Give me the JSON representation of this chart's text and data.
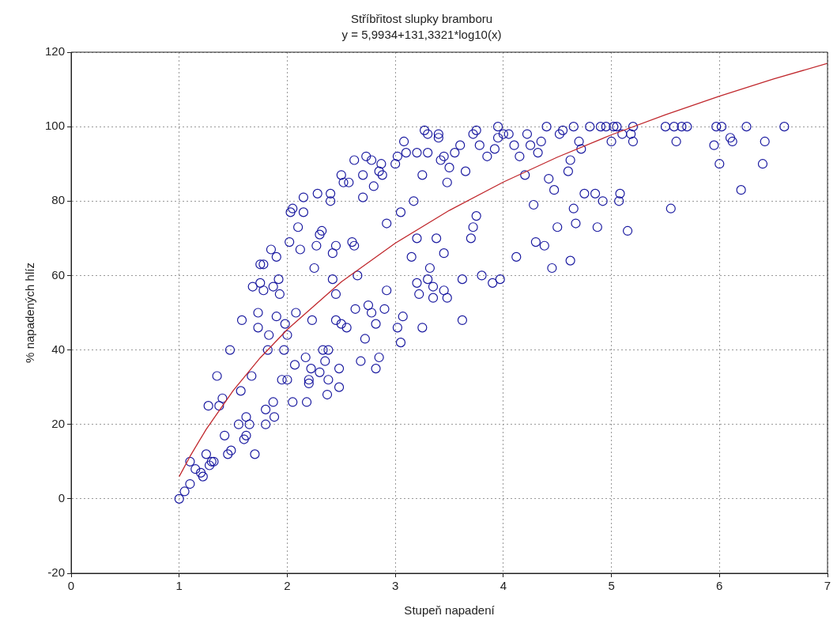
{
  "chart_data": {
    "type": "scatter",
    "title": "Stříbřitost slupky bramboru",
    "subtitle": "y = 5,9934+131,3321*log10(x)",
    "xlabel": "Stupeň napadení",
    "ylabel": "% napadených hlíz",
    "xlim": [
      0,
      7
    ],
    "xticks": [
      0,
      1,
      2,
      3,
      4,
      5,
      6,
      7
    ],
    "ylim": [
      -20,
      120
    ],
    "yticks": [
      -20,
      0,
      20,
      40,
      60,
      80,
      100,
      120
    ],
    "grid": true,
    "legend": false,
    "series": [
      {
        "color": "#1a1aa0",
        "marker": "circle",
        "x": [
          1.0,
          1.05,
          1.1,
          1.1,
          1.15,
          1.2,
          1.22,
          1.25,
          1.28,
          1.3,
          1.32,
          1.27,
          1.35,
          1.37,
          1.4,
          1.45,
          1.42,
          1.48,
          1.47,
          1.55,
          1.57,
          1.58,
          1.6,
          1.62,
          1.62,
          1.65,
          1.67,
          1.68,
          1.7,
          1.73,
          1.73,
          1.75,
          1.75,
          1.78,
          1.78,
          1.8,
          1.8,
          1.82,
          1.83,
          1.85,
          1.87,
          1.87,
          1.88,
          1.9,
          1.9,
          1.92,
          1.93,
          1.95,
          1.97,
          1.98,
          2.0,
          2.0,
          2.02,
          2.03,
          2.05,
          2.05,
          2.07,
          2.08,
          2.1,
          2.12,
          2.15,
          2.15,
          2.17,
          2.18,
          2.2,
          2.2,
          2.22,
          2.23,
          2.25,
          2.27,
          2.28,
          2.3,
          2.3,
          2.32,
          2.33,
          2.35,
          2.37,
          2.38,
          2.38,
          2.4,
          2.4,
          2.42,
          2.42,
          2.45,
          2.45,
          2.45,
          2.48,
          2.48,
          2.5,
          2.5,
          2.52,
          2.55,
          2.57,
          2.6,
          2.62,
          2.62,
          2.63,
          2.65,
          2.68,
          2.7,
          2.7,
          2.72,
          2.73,
          2.75,
          2.78,
          2.78,
          2.8,
          2.82,
          2.82,
          2.85,
          2.85,
          2.87,
          2.88,
          2.9,
          2.92,
          2.92,
          3.0,
          3.02,
          3.02,
          3.05,
          3.05,
          3.07,
          3.08,
          3.1,
          3.15,
          3.17,
          3.2,
          3.2,
          3.2,
          3.22,
          3.25,
          3.25,
          3.27,
          3.3,
          3.3,
          3.3,
          3.32,
          3.35,
          3.35,
          3.38,
          3.4,
          3.4,
          3.42,
          3.45,
          3.45,
          3.45,
          3.48,
          3.48,
          3.5,
          3.55,
          3.6,
          3.62,
          3.62,
          3.65,
          3.7,
          3.72,
          3.72,
          3.75,
          3.75,
          3.78,
          3.8,
          3.85,
          3.9,
          3.92,
          3.95,
          3.95,
          3.97,
          4.0,
          4.05,
          4.1,
          4.12,
          4.15,
          4.2,
          4.22,
          4.25,
          4.28,
          4.3,
          4.32,
          4.35,
          4.38,
          4.4,
          4.42,
          4.45,
          4.47,
          4.5,
          4.52,
          4.55,
          4.6,
          4.62,
          4.62,
          4.65,
          4.65,
          4.67,
          4.7,
          4.72,
          4.75,
          4.8,
          4.85,
          4.87,
          4.9,
          4.92,
          4.95,
          5.0,
          5.02,
          5.05,
          5.07,
          5.08,
          5.1,
          5.15,
          5.18,
          5.2,
          5.2,
          5.5,
          5.55,
          5.58,
          5.6,
          5.65,
          5.7,
          5.95,
          5.97,
          6.0,
          6.02,
          6.1,
          6.12,
          6.2,
          6.25,
          6.4,
          6.42,
          6.6
        ],
        "values": [
          0,
          2,
          4,
          10,
          8,
          7,
          6,
          12,
          9,
          10,
          10,
          25,
          33,
          25,
          27,
          12,
          17,
          13,
          40,
          20,
          29,
          48,
          16,
          17,
          22,
          20,
          33,
          57,
          12,
          46,
          50,
          58,
          63,
          63,
          56,
          20,
          24,
          40,
          44,
          67,
          57,
          26,
          22,
          49,
          65,
          59,
          55,
          32,
          40,
          47,
          32,
          44,
          69,
          77,
          78,
          26,
          36,
          50,
          73,
          67,
          81,
          77,
          38,
          26,
          32,
          31,
          35,
          48,
          62,
          68,
          82,
          71,
          34,
          72,
          40,
          37,
          28,
          32,
          40,
          80,
          82,
          66,
          59,
          68,
          48,
          55,
          35,
          30,
          47,
          87,
          85,
          46,
          85,
          69,
          68,
          91,
          51,
          60,
          37,
          81,
          87,
          43,
          92,
          52,
          91,
          50,
          84,
          47,
          35,
          88,
          38,
          90,
          87,
          51,
          74,
          56,
          90,
          92,
          46,
          77,
          42,
          49,
          96,
          93,
          65,
          80,
          93,
          70,
          58,
          55,
          46,
          87,
          99,
          93,
          98,
          59,
          62,
          57,
          54,
          70,
          98,
          97,
          91,
          92,
          66,
          56,
          54,
          85,
          89,
          93,
          95,
          59,
          48,
          88,
          70,
          98,
          73,
          99,
          76,
          95,
          60,
          92,
          58,
          94,
          97,
          100,
          59,
          98,
          98,
          95,
          65,
          92,
          87,
          98,
          95,
          79,
          69,
          93,
          96,
          68,
          100,
          86,
          62,
          83,
          73,
          98,
          99,
          88,
          91,
          64,
          100,
          78,
          74,
          96,
          94,
          82,
          100,
          82,
          73,
          100,
          80,
          100,
          96,
          100,
          100,
          80,
          82,
          98,
          72,
          98,
          96,
          100,
          100,
          78,
          100,
          96,
          100,
          100,
          95,
          100,
          90,
          100,
          97,
          96,
          83,
          100,
          90,
          96,
          100
        ]
      },
      {
        "type": "line",
        "color": "#c0282d",
        "line_style": "solid",
        "marker": "none",
        "x": [
          1,
          1.1,
          1.25,
          1.5,
          1.75,
          2,
          2.5,
          3,
          3.5,
          4,
          4.5,
          5,
          5.5,
          6,
          6.5,
          7
        ],
        "values": [
          6.0,
          11.4,
          18.7,
          29.1,
          37.9,
          45.5,
          58.3,
          68.7,
          77.5,
          85.1,
          91.8,
          97.8,
          103.2,
          108.2,
          112.8,
          117.0
        ]
      }
    ]
  }
}
